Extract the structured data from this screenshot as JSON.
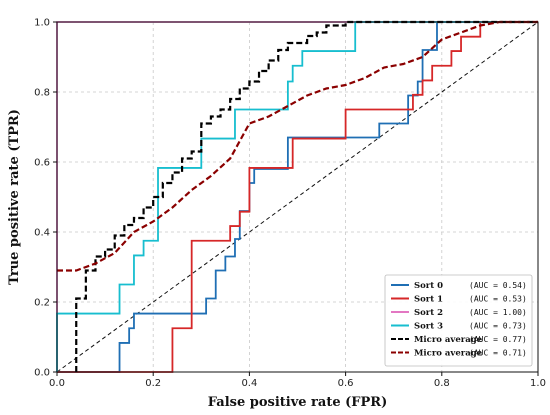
{
  "chart_data": {
    "type": "line",
    "xlabel": "False positive rate (FPR)",
    "ylabel": "True positive rate (TPR)",
    "xlim": [
      0,
      1.0
    ],
    "ylim": [
      0,
      1.0
    ],
    "xticks": [
      "0.0",
      "0.2",
      "0.4",
      "0.6",
      "0.8",
      "1.0"
    ],
    "yticks": [
      "0.0",
      "0.2",
      "0.4",
      "0.6",
      "0.8",
      "1.0"
    ],
    "grid": true,
    "legend_position": "bottom-right",
    "series": [
      {
        "name": "Sort  0",
        "auc": "(AUC = 0.54)",
        "color": "#1f6fb4",
        "style": "solid",
        "x": [
          0,
          0.13,
          0.13,
          0.15,
          0.15,
          0.16,
          0.16,
          0.31,
          0.31,
          0.33,
          0.33,
          0.35,
          0.35,
          0.37,
          0.37,
          0.38,
          0.38,
          0.4,
          0.4,
          0.41,
          0.41,
          0.48,
          0.48,
          0.67,
          0.67,
          0.73,
          0.73,
          0.75,
          0.75,
          0.76,
          0.76,
          0.79,
          0.79,
          1.0
        ],
        "y": [
          0,
          0,
          0.083,
          0.083,
          0.125,
          0.125,
          0.167,
          0.167,
          0.21,
          0.21,
          0.29,
          0.29,
          0.33,
          0.33,
          0.38,
          0.38,
          0.46,
          0.46,
          0.54,
          0.54,
          0.58,
          0.58,
          0.67,
          0.67,
          0.71,
          0.71,
          0.79,
          0.79,
          0.83,
          0.83,
          0.92,
          0.92,
          1.0,
          1.0
        ]
      },
      {
        "name": "Sort  1",
        "auc": "(AUC = 0.53)",
        "color": "#d62728",
        "style": "solid",
        "x": [
          0,
          0.24,
          0.24,
          0.28,
          0.28,
          0.36,
          0.36,
          0.38,
          0.38,
          0.4,
          0.4,
          0.49,
          0.49,
          0.6,
          0.6,
          0.74,
          0.74,
          0.76,
          0.76,
          0.78,
          0.78,
          0.82,
          0.82,
          0.84,
          0.84,
          0.88,
          0.88,
          1.0
        ],
        "y": [
          0,
          0,
          0.125,
          0.125,
          0.375,
          0.375,
          0.417,
          0.417,
          0.458,
          0.458,
          0.583,
          0.583,
          0.667,
          0.667,
          0.75,
          0.75,
          0.792,
          0.792,
          0.833,
          0.833,
          0.875,
          0.875,
          0.917,
          0.917,
          0.958,
          0.958,
          1.0,
          1.0
        ]
      },
      {
        "name": "Sort  2",
        "auc": "(AUC = 1.00)",
        "color": "#e377c2",
        "style": "solid",
        "x": [
          0,
          0,
          1.0
        ],
        "y": [
          0,
          1.0,
          1.0
        ]
      },
      {
        "name": "Sort  3",
        "auc": "(AUC = 0.73)",
        "color": "#17becf",
        "style": "solid",
        "x": [
          0,
          0,
          0.13,
          0.13,
          0.16,
          0.16,
          0.18,
          0.18,
          0.21,
          0.21,
          0.22,
          0.22,
          0.3,
          0.3,
          0.37,
          0.37,
          0.48,
          0.48,
          0.49,
          0.49,
          0.51,
          0.51,
          0.62,
          0.62,
          1.0
        ],
        "y": [
          0,
          0.167,
          0.167,
          0.25,
          0.25,
          0.333,
          0.333,
          0.375,
          0.375,
          0.583,
          0.583,
          0.583,
          0.583,
          0.667,
          0.667,
          0.75,
          0.75,
          0.83,
          0.83,
          0.875,
          0.875,
          0.917,
          0.917,
          1.0,
          1.0
        ]
      },
      {
        "name": "Micro average",
        "auc": "(AUC = 0.77)",
        "color": "#000000",
        "style": "dashed",
        "x": [
          0.04,
          0.04,
          0.06,
          0.06,
          0.08,
          0.08,
          0.1,
          0.1,
          0.12,
          0.12,
          0.14,
          0.14,
          0.16,
          0.16,
          0.18,
          0.18,
          0.2,
          0.2,
          0.22,
          0.22,
          0.24,
          0.24,
          0.26,
          0.26,
          0.28,
          0.28,
          0.3,
          0.3,
          0.32,
          0.32,
          0.34,
          0.34,
          0.36,
          0.36,
          0.38,
          0.38,
          0.4,
          0.4,
          0.42,
          0.42,
          0.44,
          0.44,
          0.46,
          0.46,
          0.48,
          0.48,
          0.5,
          0.5,
          0.52,
          0.52,
          0.54,
          0.54,
          0.56,
          0.56,
          0.58,
          0.58,
          0.6,
          0.6,
          0.62,
          0.62,
          0.64,
          0.64,
          1.0
        ],
        "y": [
          0,
          0.21,
          0.21,
          0.29,
          0.29,
          0.33,
          0.33,
          0.35,
          0.35,
          0.39,
          0.39,
          0.42,
          0.42,
          0.44,
          0.44,
          0.47,
          0.47,
          0.5,
          0.5,
          0.54,
          0.54,
          0.57,
          0.57,
          0.61,
          0.61,
          0.63,
          0.63,
          0.71,
          0.71,
          0.73,
          0.73,
          0.75,
          0.75,
          0.78,
          0.78,
          0.81,
          0.81,
          0.83,
          0.83,
          0.86,
          0.86,
          0.89,
          0.89,
          0.92,
          0.92,
          0.94,
          0.94,
          0.94,
          0.94,
          0.96,
          0.96,
          0.97,
          0.97,
          0.99,
          0.99,
          0.99,
          0.99,
          1.0,
          1.0,
          1.0,
          1.0,
          1.0,
          1.0
        ]
      },
      {
        "name": "Micro average",
        "auc": "(AUC = 0.71)",
        "color": "#8b0000",
        "style": "dashed",
        "x": [
          0,
          0.04,
          0.08,
          0.12,
          0.16,
          0.2,
          0.24,
          0.28,
          0.32,
          0.36,
          0.4,
          0.44,
          0.48,
          0.52,
          0.56,
          0.6,
          0.64,
          0.68,
          0.72,
          0.76,
          0.8,
          0.84,
          0.88,
          0.92,
          1.0
        ],
        "y": [
          0.29,
          0.29,
          0.31,
          0.34,
          0.4,
          0.43,
          0.47,
          0.52,
          0.56,
          0.61,
          0.71,
          0.73,
          0.76,
          0.79,
          0.81,
          0.82,
          0.84,
          0.87,
          0.88,
          0.9,
          0.95,
          0.97,
          0.99,
          1.0,
          1.0
        ]
      }
    ]
  }
}
